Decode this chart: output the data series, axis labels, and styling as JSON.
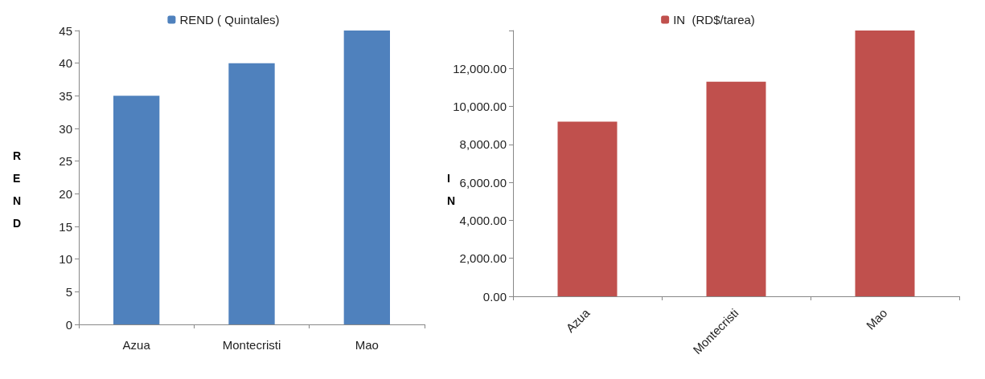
{
  "chart_data": [
    {
      "type": "bar",
      "categories": [
        "Azua",
        "Montecristi",
        "Mao"
      ],
      "ylabel": "REND",
      "series": [
        {
          "name": "REND ( Quintales)",
          "color": "#4f81bd",
          "values": [
            35,
            40,
            45
          ]
        }
      ],
      "ylim": [
        0,
        45
      ],
      "yticks": [
        0,
        5,
        10,
        15,
        20,
        25,
        30,
        35,
        40,
        45
      ],
      "grid": false,
      "legend": "top"
    },
    {
      "type": "bar",
      "categories": [
        "Azua",
        "Montecristi",
        "Mao"
      ],
      "ylabel": "IN",
      "series": [
        {
          "name": "IN  (RD$/tarea)",
          "color": "#c0504d",
          "values": [
            9200,
            11300,
            14000
          ]
        }
      ],
      "ylim": [
        0,
        14000
      ],
      "yticks": [
        {
          "value": 0,
          "label": "0.00"
        },
        {
          "value": 2000,
          "label": "2,000.00"
        },
        {
          "value": 4000,
          "label": "4,000.00"
        },
        {
          "value": 6000,
          "label": "6,000.00"
        },
        {
          "value": 8000,
          "label": "8,000.00"
        },
        {
          "value": 10000,
          "label": "10,000.00"
        },
        {
          "value": 12000,
          "label": "12,000.00"
        },
        {
          "value": 14000,
          "label": null
        }
      ],
      "grid": false,
      "legend": "top"
    }
  ]
}
